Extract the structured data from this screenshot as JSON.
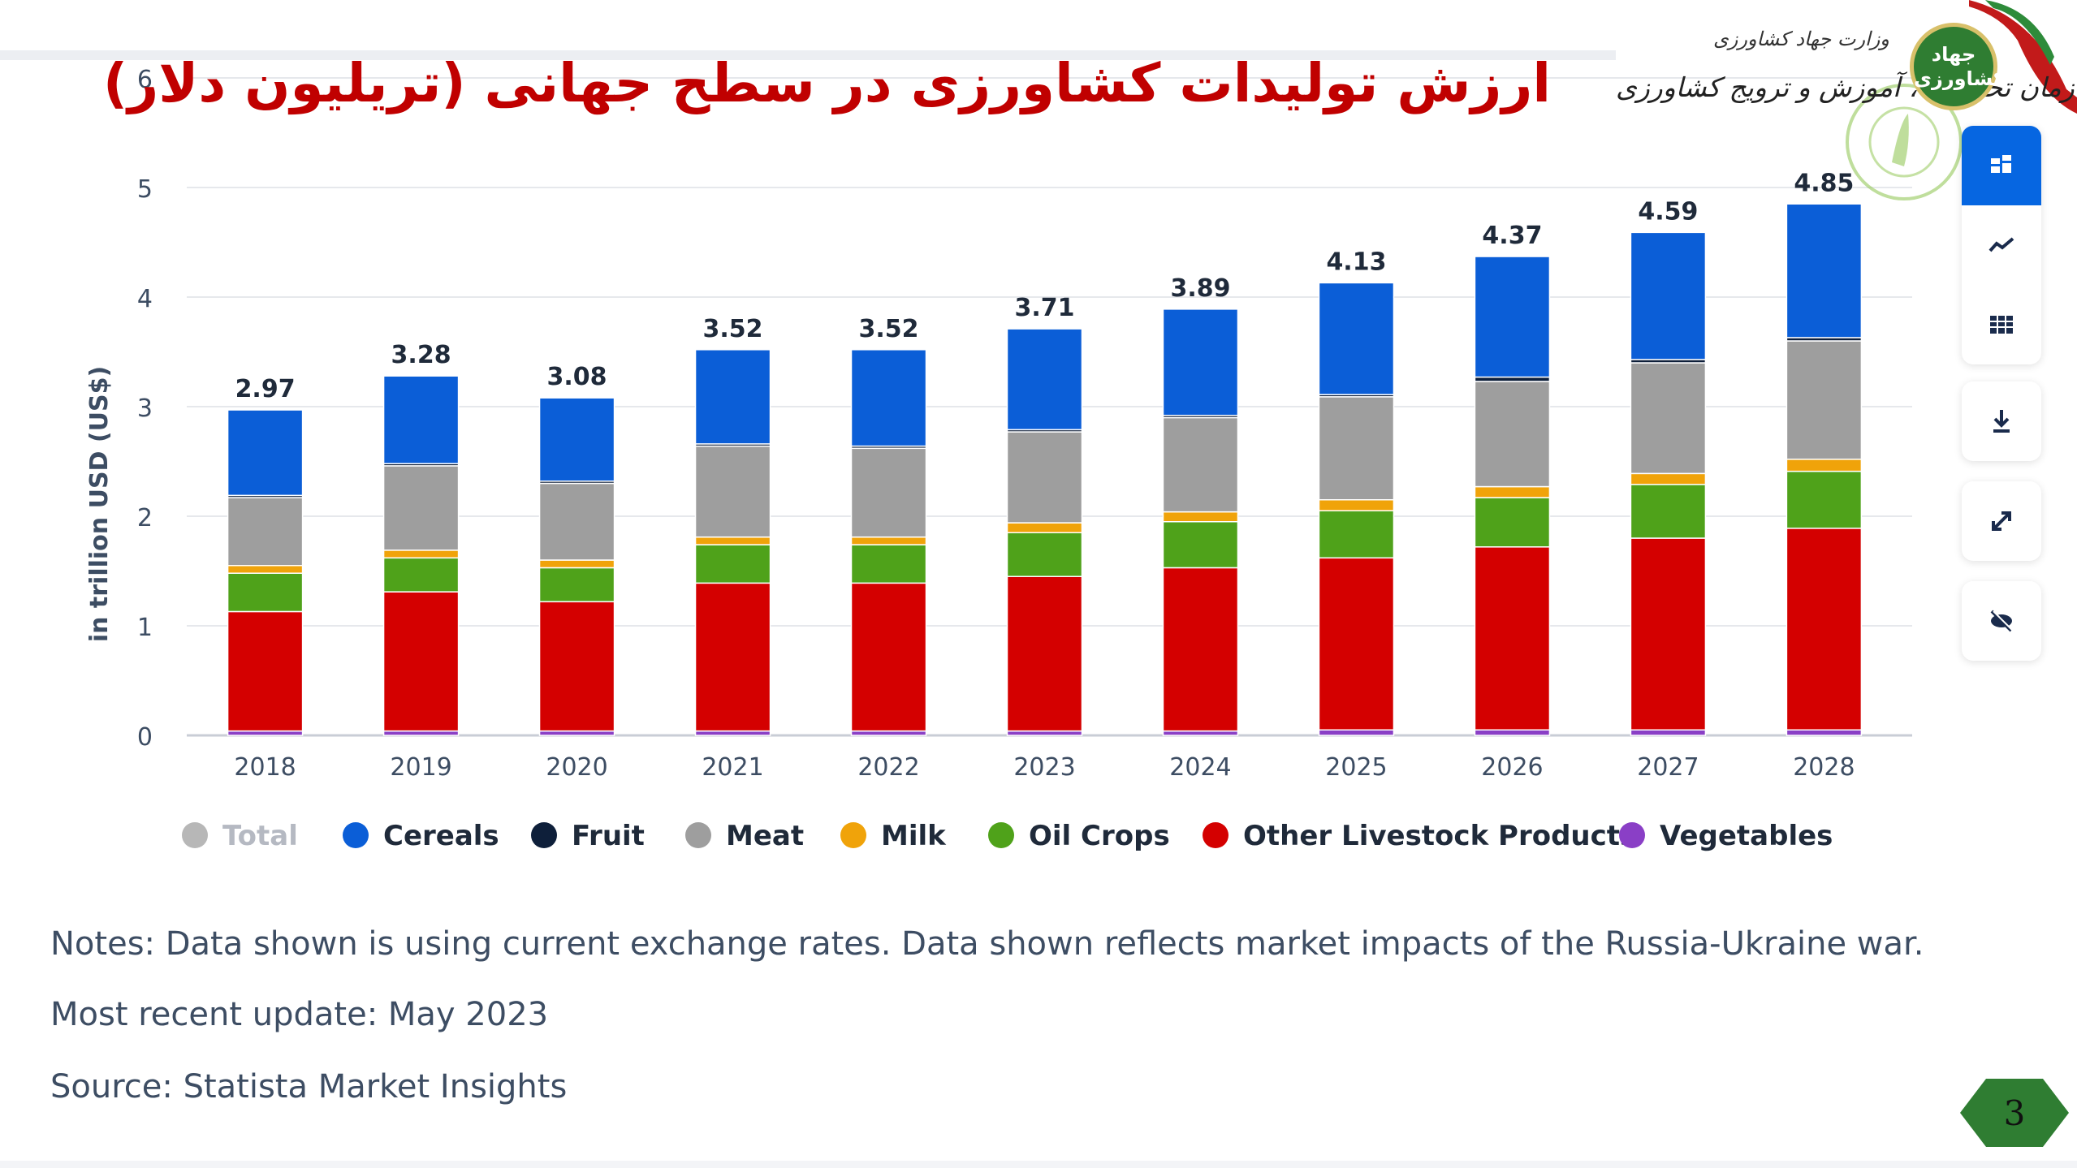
{
  "title": "ارزش تولیدات کشاورزی در سطح جهانی (تریلیون دلار)",
  "logo": {
    "ministry": "وزارت جهاد کشاورزی",
    "organization": "سازمان تحقیقات، آموزش و ترویج کشاورزی",
    "emblem_text": "جهاد کشاورزی"
  },
  "toolbar": {
    "icons": [
      "bar-chart-icon",
      "line-chart-icon",
      "table-icon",
      "download-icon",
      "expand-icon",
      "hide-icon"
    ],
    "active": "bar-chart-icon"
  },
  "notes": {
    "note": "Notes: Data shown is using current exchange rates. Data shown reflects market impacts of the Russia-Ukraine war.",
    "update": "Most recent update: May 2023",
    "source": "Source: Statista Market Insights"
  },
  "page_number": "3",
  "chart_data": {
    "type": "bar",
    "stacked": true,
    "title": "ارزش تولیدات کشاورزی در سطح جهانی (تریلیون دلار)",
    "xlabel": "",
    "ylabel": "in trillion USD (US$)",
    "ylim": [
      0,
      6
    ],
    "yticks": [
      0,
      1,
      2,
      3,
      4,
      5,
      6
    ],
    "categories": [
      "2018",
      "2019",
      "2020",
      "2021",
      "2022",
      "2023",
      "2024",
      "2025",
      "2026",
      "2027",
      "2028"
    ],
    "totals": [
      "2.97",
      "3.28",
      "3.08",
      "3.52",
      "3.52",
      "3.71",
      "3.89",
      "4.13",
      "4.37",
      "4.59",
      "4.85"
    ],
    "legend": [
      {
        "name": "Total",
        "color": "#b7b7b7",
        "muted": true
      },
      {
        "name": "Cereals",
        "color": "#0b5ed7"
      },
      {
        "name": "Fruit",
        "color": "#0e1f3a"
      },
      {
        "name": "Meat",
        "color": "#9e9e9e"
      },
      {
        "name": "Milk",
        "color": "#f0a30a"
      },
      {
        "name": "Oil Crops",
        "color": "#4fa21a"
      },
      {
        "name": "Other Livestock Products",
        "color": "#d40000"
      },
      {
        "name": "Vegetables",
        "color": "#8a3fc6"
      }
    ],
    "series": [
      {
        "name": "Vegetables",
        "color": "#8a3fc6",
        "values": [
          0.04,
          0.04,
          0.04,
          0.04,
          0.04,
          0.04,
          0.04,
          0.05,
          0.05,
          0.05,
          0.05
        ]
      },
      {
        "name": "Other Livestock Products",
        "color": "#d40000",
        "values": [
          1.09,
          1.27,
          1.18,
          1.35,
          1.35,
          1.41,
          1.49,
          1.57,
          1.67,
          1.75,
          1.84
        ]
      },
      {
        "name": "Oil Crops",
        "color": "#4fa21a",
        "values": [
          0.35,
          0.31,
          0.31,
          0.35,
          0.35,
          0.4,
          0.42,
          0.43,
          0.45,
          0.49,
          0.52
        ]
      },
      {
        "name": "Milk",
        "color": "#f0a30a",
        "values": [
          0.07,
          0.07,
          0.07,
          0.07,
          0.07,
          0.09,
          0.09,
          0.1,
          0.1,
          0.1,
          0.11
        ]
      },
      {
        "name": "Meat",
        "color": "#9e9e9e",
        "values": [
          0.62,
          0.77,
          0.7,
          0.83,
          0.81,
          0.83,
          0.86,
          0.94,
          0.96,
          1.01,
          1.08
        ]
      },
      {
        "name": "Fruit",
        "color": "#0e1f3a",
        "values": [
          0.02,
          0.02,
          0.02,
          0.02,
          0.02,
          0.02,
          0.02,
          0.02,
          0.04,
          0.03,
          0.03
        ]
      },
      {
        "name": "Cereals",
        "color": "#0b5ed7",
        "values": [
          0.78,
          0.8,
          0.76,
          0.86,
          0.88,
          0.92,
          0.97,
          1.02,
          1.1,
          1.16,
          1.22
        ]
      }
    ],
    "grid": true,
    "legend_position": "bottom"
  }
}
